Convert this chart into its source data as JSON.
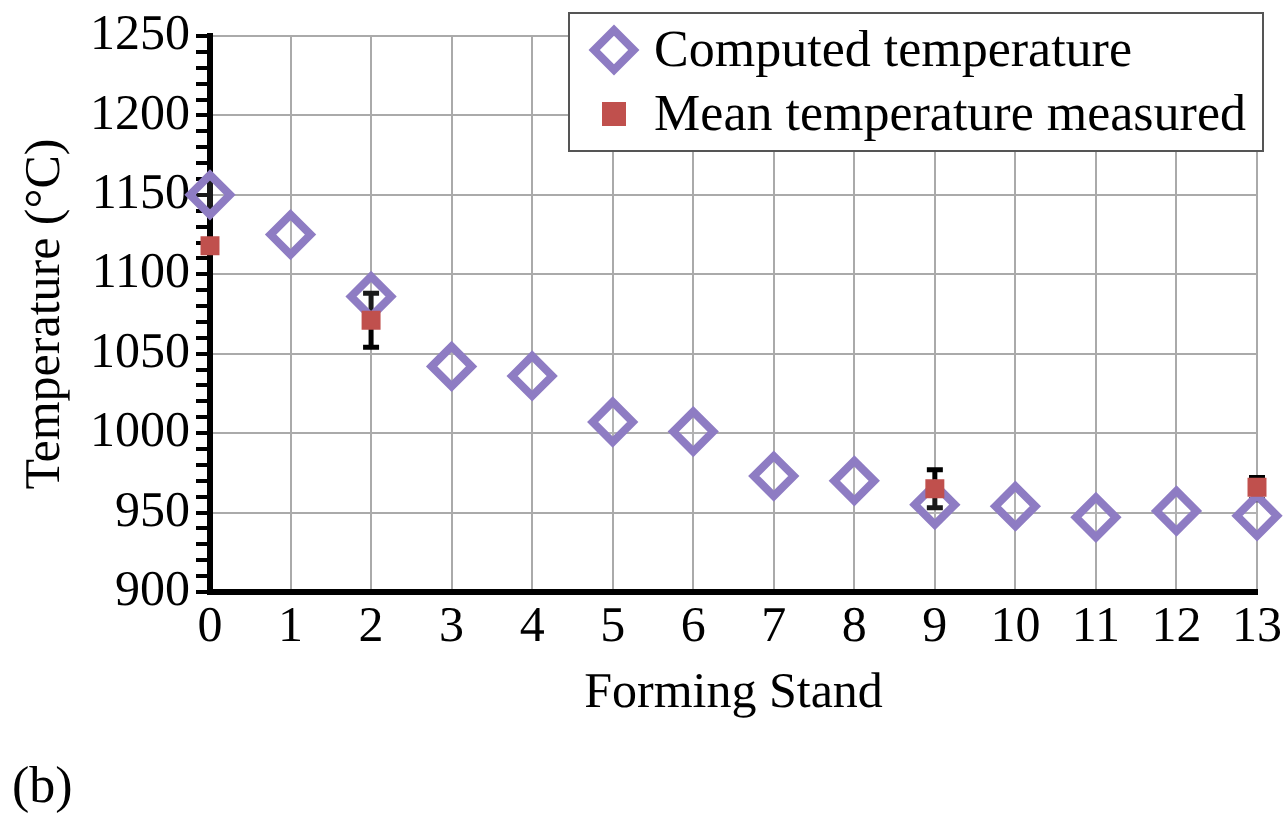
{
  "chart_data": {
    "type": "scatter",
    "xlabel": "Forming Stand",
    "ylabel": "Temperature (°C)",
    "annotations": [
      "(b)"
    ],
    "xlim": [
      0,
      13
    ],
    "xticks": [
      0,
      1,
      2,
      3,
      4,
      5,
      6,
      7,
      8,
      9,
      10,
      11,
      12,
      13
    ],
    "ylim": [
      900,
      1250
    ],
    "yticks": [
      900,
      {
        "value": 910,
        "label": null
      },
      {
        "value": 920,
        "label": null
      },
      {
        "value": 930,
        "label": null
      },
      {
        "value": 940,
        "label": null
      },
      950,
      {
        "value": 960,
        "label": null
      },
      {
        "value": 970,
        "label": null
      },
      {
        "value": 980,
        "label": null
      },
      {
        "value": 990,
        "label": null
      },
      1000,
      {
        "value": 1010,
        "label": null
      },
      {
        "value": 1020,
        "label": null
      },
      {
        "value": 1030,
        "label": null
      },
      {
        "value": 1040,
        "label": null
      },
      1050,
      {
        "value": 1060,
        "label": null
      },
      {
        "value": 1070,
        "label": null
      },
      {
        "value": 1080,
        "label": null
      },
      {
        "value": 1090,
        "label": null
      },
      1100,
      {
        "value": 1110,
        "label": null
      },
      {
        "value": 1120,
        "label": null
      },
      {
        "value": 1130,
        "label": null
      },
      {
        "value": 1140,
        "label": null
      },
      1150,
      {
        "value": 1160,
        "label": null
      },
      {
        "value": 1170,
        "label": null
      },
      {
        "value": 1180,
        "label": null
      },
      {
        "value": 1190,
        "label": null
      },
      1200,
      {
        "value": 1210,
        "label": null
      },
      {
        "value": 1220,
        "label": null
      },
      {
        "value": 1230,
        "label": null
      },
      {
        "value": 1240,
        "label": null
      },
      1250
    ],
    "grid": true,
    "legend": "top right",
    "series": [
      {
        "name": "Computed temperature",
        "color": "#8e7cc3",
        "marker": "diamond",
        "x": [
          0,
          1,
          2,
          3,
          4,
          5,
          6,
          7,
          8,
          9,
          10,
          11,
          12,
          13
        ],
        "values": [
          1150,
          1125,
          1086,
          1042,
          1036,
          1007,
          1001,
          973,
          970,
          955,
          954,
          947,
          951,
          948
        ]
      },
      {
        "name": "Mean temperature measured",
        "color": "#c0504d",
        "marker": "square",
        "x": [
          0,
          2,
          9,
          13
        ],
        "values": [
          1118,
          1071,
          965,
          966
        ],
        "errors": [
          null,
          [
            1054,
            1088
          ],
          [
            953,
            977
          ],
          [
            958,
            972
          ]
        ]
      }
    ]
  }
}
